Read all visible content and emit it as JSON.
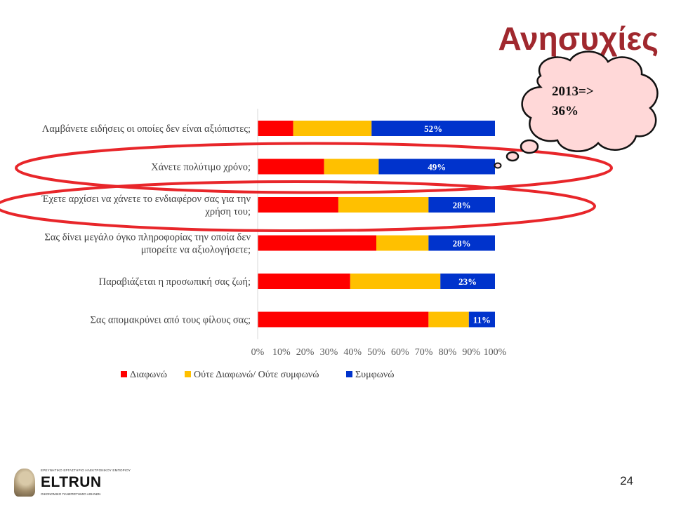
{
  "slide": {
    "title": "Ανησυχίες",
    "page_number": "24",
    "callout_line1": "2013=>",
    "callout_line2": "36%"
  },
  "logo": {
    "brand": "ELTRUN",
    "tagline_top": "ΕΡΕΥΝΗΤΙΚΟ ΕΡΓΑΣΤΗΡΙΟ ΗΛΕΚΤΡΟΝΙΚΟΥ ΕΜΠΟΡΙΟΥ",
    "tagline_bottom": "ΟΙΚΟΝΟΜΙΚΟ ΠΑΝΕΠΙΣΤΗΜΙΟ ΑΘΗΝΩΝ"
  },
  "colors": {
    "disagree": "#ff0000",
    "neutral": "#ffc000",
    "agree": "#0033cc",
    "highlight": "#e8262a",
    "title": "#a0282e"
  },
  "chart_data": {
    "type": "bar",
    "orientation": "horizontal",
    "stacked": "percent",
    "categories": [
      [
        "Λαμβάνετε ειδήσεις οι οποίες δεν είναι αξιόπιστες;"
      ],
      [
        "Χάνετε πολύτιμο χρόνο;"
      ],
      [
        "Έχετε αρχίσει να χάνετε το ενδιαφέρον σας για την",
        "χρήση του;"
      ],
      [
        "Σας δίνει μεγάλο όγκο πληροφορίας την οποία δεν",
        "μπορείτε να αξιολογήσετε;"
      ],
      [
        "Παραβιάζεται η προσωπική σας ζωή;"
      ],
      [
        "Σας απομακρύνει από τους φίλους σας;"
      ]
    ],
    "series": [
      {
        "name": "Διαφωνώ",
        "values": [
          15,
          28,
          34,
          50,
          39,
          72
        ]
      },
      {
        "name": "Ούτε Διαφωνώ/ Ούτε συμφωνώ",
        "values": [
          33,
          23,
          38,
          22,
          38,
          17
        ]
      },
      {
        "name": "Συμφωνώ",
        "values": [
          52,
          49,
          28,
          28,
          23,
          11
        ]
      }
    ],
    "data_labels": [
      "52%",
      "49%",
      "28%",
      "28%",
      "23%",
      "11%"
    ],
    "x_ticks": [
      "0%",
      "10%",
      "20%",
      "30%",
      "40%",
      "50%",
      "60%",
      "70%",
      "80%",
      "90%",
      "100%"
    ],
    "xlim": [
      0,
      100
    ],
    "highlighted_categories": [
      1,
      2
    ],
    "grid": false,
    "legend_position": "bottom"
  }
}
